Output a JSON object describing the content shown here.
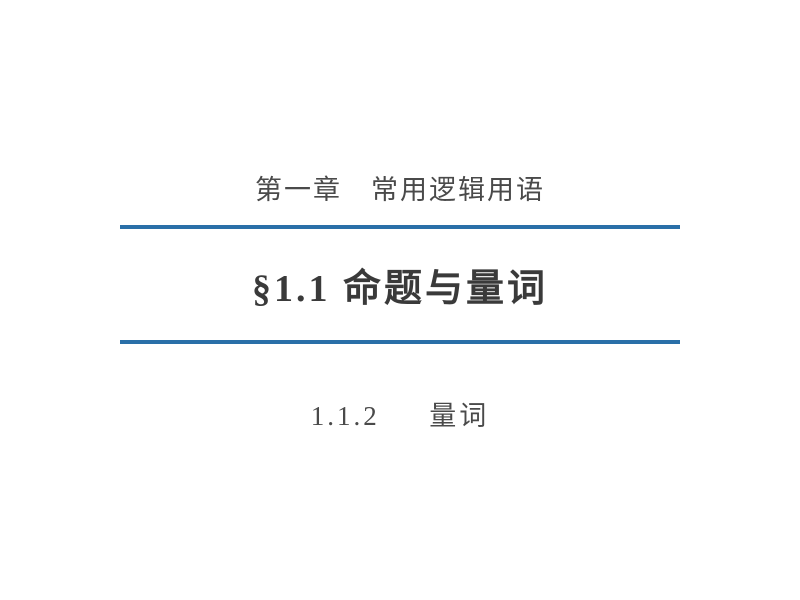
{
  "chapter": {
    "title": "第一章　常用逻辑用语"
  },
  "section": {
    "symbol": "§1.1",
    "title": "命题与量词"
  },
  "subsection": {
    "number": "1.1.2",
    "title": "量词"
  },
  "style": {
    "divider_color": "#2a6fa8",
    "divider_width": 560,
    "divider_height": 4,
    "background_color": "#ffffff",
    "chapter_fontsize": 27,
    "section_fontsize": 38,
    "subsection_fontsize": 27,
    "text_color_primary": "#3a3a3a",
    "text_color_secondary": "#4a4a4a"
  }
}
